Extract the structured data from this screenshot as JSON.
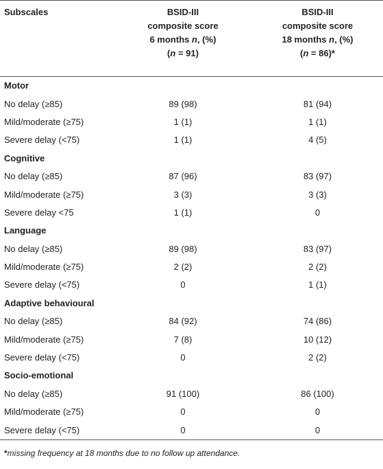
{
  "header": {
    "columns": [
      {
        "lines": [
          [
            {
              "text": "Subscales"
            }
          ]
        ]
      },
      {
        "lines": [
          [
            {
              "text": "BSID-III"
            }
          ],
          [
            {
              "text": "composite score"
            }
          ],
          [
            {
              "text": "6 months "
            },
            {
              "text": "n",
              "italic": true
            },
            {
              "text": ", (%)"
            }
          ],
          [
            {
              "text": "("
            },
            {
              "text": "n",
              "italic": true
            },
            {
              "text": " = 91)"
            }
          ]
        ]
      },
      {
        "lines": [
          [
            {
              "text": "BSID-III"
            }
          ],
          [
            {
              "text": "composite score"
            }
          ],
          [
            {
              "text": "18 months "
            },
            {
              "text": "n",
              "italic": true
            },
            {
              "text": ", (%)"
            }
          ],
          [
            {
              "text": "("
            },
            {
              "text": "n",
              "italic": true
            },
            {
              "text": " = 86)*"
            }
          ]
        ]
      }
    ]
  },
  "sections": [
    {
      "title": "Motor",
      "rows": [
        [
          "No delay (≥85)",
          "89 (98)",
          "81 (94)"
        ],
        [
          "Mild/moderate (≥75)",
          "1 (1)",
          "1 (1)"
        ],
        [
          "Severe delay (<75)",
          "1 (1)",
          "4 (5)"
        ]
      ]
    },
    {
      "title": "Cognitive",
      "rows": [
        [
          "No delay (≥85)",
          "87 (96)",
          "83 (97)"
        ],
        [
          "Mild/moderate (≥75)",
          "3 (3)",
          "3 (3)"
        ],
        [
          "Severe delay <75",
          "1 (1)",
          "0"
        ]
      ]
    },
    {
      "title": "Language",
      "rows": [
        [
          "No delay (≥85)",
          "89 (98)",
          "83 (97)"
        ],
        [
          "Mild/moderate (≥75)",
          "2 (2)",
          "2 (2)"
        ],
        [
          "Severe delay (<75)",
          "0",
          "1 (1)"
        ]
      ]
    },
    {
      "title": "Adaptive behavioural",
      "rows": [
        [
          "No delay (≥85)",
          "84 (92)",
          "74 (86)"
        ],
        [
          "Mild/moderate (≥75)",
          "7 (8)",
          "10 (12)"
        ],
        [
          "Severe delay (<75)",
          "0",
          "2 (2)"
        ]
      ]
    },
    {
      "title": "Socio-emotional",
      "rows": [
        [
          "No delay (≥85)",
          "91 (100)",
          "86 (100)"
        ],
        [
          "Mild/moderate (≥75)",
          "0",
          "0"
        ],
        [
          "Severe delay (<75)",
          "0",
          "0"
        ]
      ]
    }
  ],
  "footnote": {
    "mark": "*",
    "text": "missing frequency at 18 months due to no follow up attendance."
  }
}
